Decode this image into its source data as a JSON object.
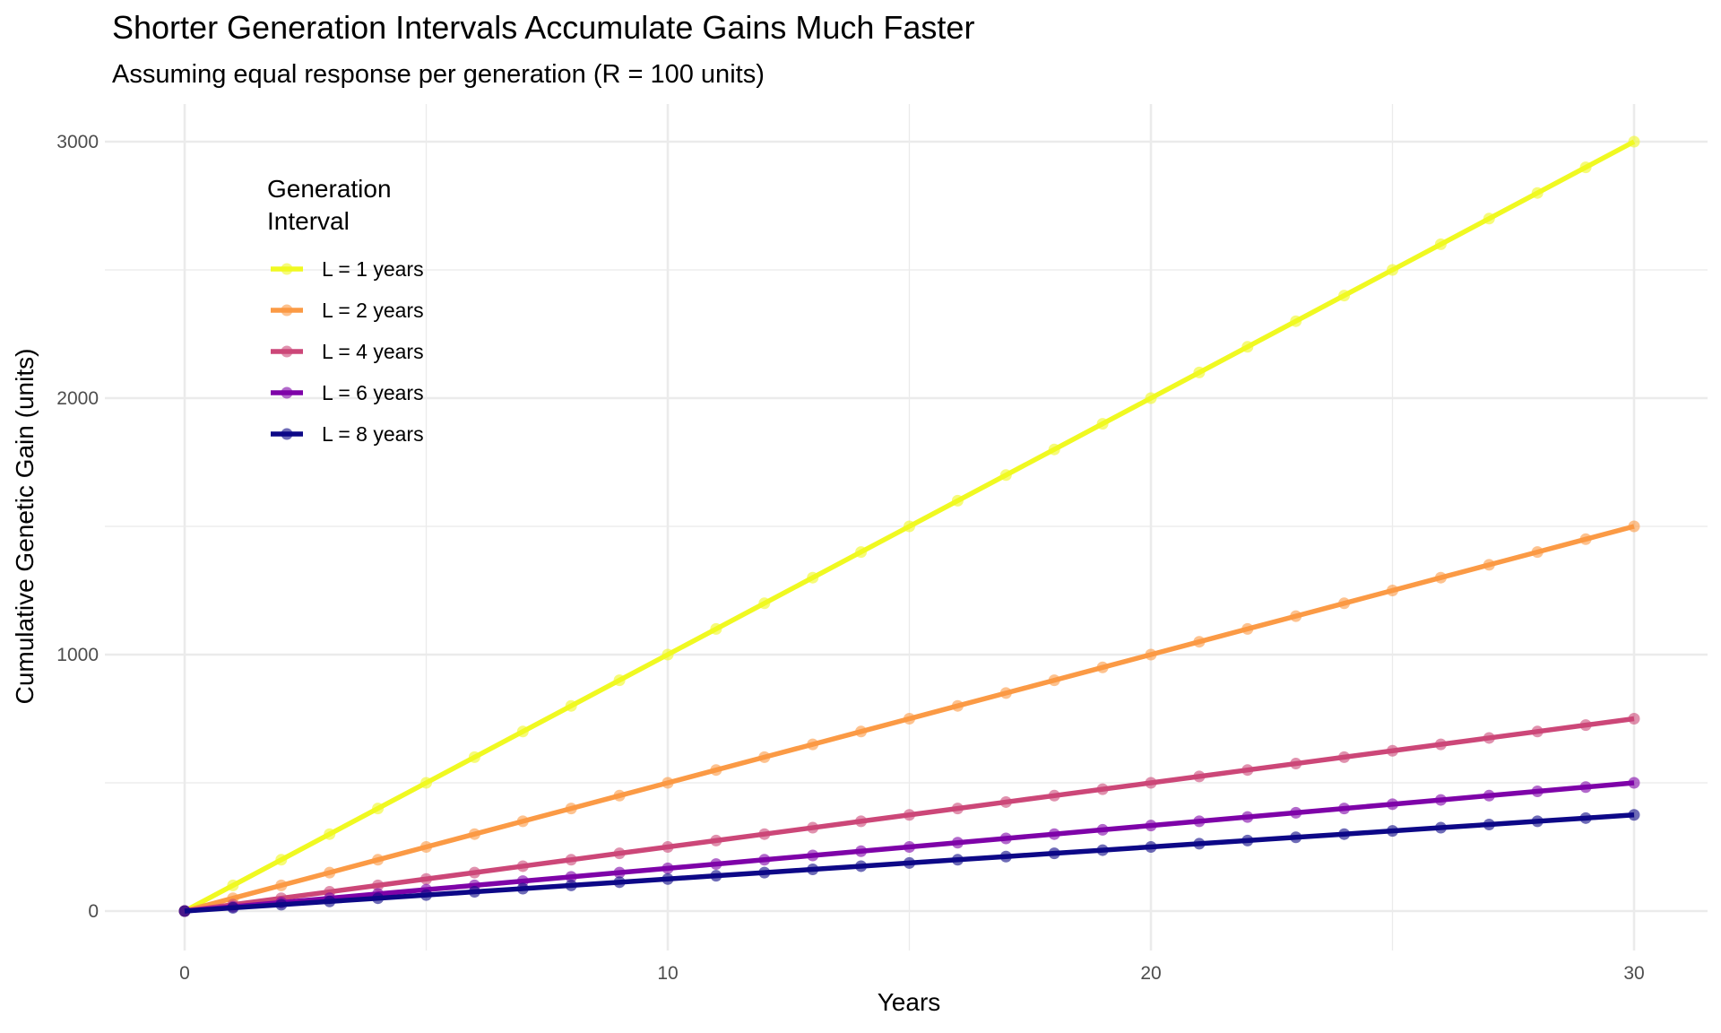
{
  "chart_data": {
    "type": "line",
    "title": "Shorter Generation Intervals Accumulate Gains Much Faster",
    "subtitle": "Assuming equal response per generation (R = 100 units)",
    "xlabel": "Years",
    "ylabel": "Cumulative Genetic Gain (units)",
    "xlim": [
      -1.8,
      31.5
    ],
    "ylim": [
      -150,
      3150
    ],
    "xticks": [
      0,
      10,
      20,
      30
    ],
    "xtick_labels": [
      "0",
      "10",
      "20",
      "30"
    ],
    "yticks": [
      0,
      1000,
      2000,
      3000
    ],
    "ytick_labels": [
      "0",
      "1000",
      "2000",
      "3000"
    ],
    "grid": true,
    "legend": {
      "title": "Generation\nInterval",
      "title_lines": [
        "Generation",
        "Interval"
      ],
      "placement": "top-left inside"
    },
    "x": [
      0,
      1,
      2,
      3,
      4,
      5,
      6,
      7,
      8,
      9,
      10,
      11,
      12,
      13,
      14,
      15,
      16,
      17,
      18,
      19,
      20,
      21,
      22,
      23,
      24,
      25,
      26,
      27,
      28,
      29,
      30
    ],
    "series": [
      {
        "name": "L = 1 years",
        "color": "#f0f921",
        "values": [
          0,
          100,
          200,
          300,
          400,
          500,
          600,
          700,
          800,
          900,
          1000,
          1100,
          1200,
          1300,
          1400,
          1500,
          1600,
          1700,
          1800,
          1900,
          2000,
          2100,
          2200,
          2300,
          2400,
          2500,
          2600,
          2700,
          2800,
          2900,
          3000
        ]
      },
      {
        "name": "L = 2 years",
        "color": "#fb9a45",
        "values": [
          0,
          50,
          100,
          150,
          200,
          250,
          300,
          350,
          400,
          450,
          500,
          550,
          600,
          650,
          700,
          750,
          800,
          850,
          900,
          950,
          1000,
          1050,
          1100,
          1150,
          1200,
          1250,
          1300,
          1350,
          1400,
          1450,
          1500
        ]
      },
      {
        "name": "L = 4 years",
        "color": "#cc4778",
        "values": [
          0,
          25,
          50,
          75,
          100,
          125,
          150,
          175,
          200,
          225,
          250,
          275,
          300,
          325,
          350,
          375,
          400,
          425,
          450,
          475,
          500,
          525,
          550,
          575,
          600,
          625,
          650,
          675,
          700,
          725,
          750
        ]
      },
      {
        "name": "L = 6 years",
        "color": "#7e03a8",
        "values": [
          0,
          16.7,
          33.3,
          50,
          66.7,
          83.3,
          100,
          116.7,
          133.3,
          150,
          166.7,
          183.3,
          200,
          216.7,
          233.3,
          250,
          266.7,
          283.3,
          300,
          316.7,
          333.3,
          350,
          366.7,
          383.3,
          400,
          416.7,
          433.3,
          450,
          466.7,
          483.3,
          500
        ]
      },
      {
        "name": "L = 8 years",
        "color": "#0d0887",
        "values": [
          0,
          12.5,
          25,
          37.5,
          50,
          62.5,
          75,
          87.5,
          100,
          112.5,
          125,
          137.5,
          150,
          162.5,
          175,
          187.5,
          200,
          212.5,
          225,
          237.5,
          250,
          262.5,
          275,
          287.5,
          300,
          312.5,
          325,
          337.5,
          350,
          362.5,
          375
        ]
      }
    ]
  }
}
